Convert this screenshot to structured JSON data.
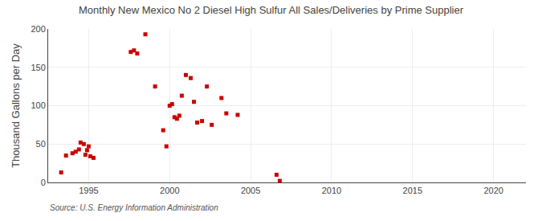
{
  "chart_data": {
    "type": "scatter",
    "title": "Monthly New Mexico No 2 Diesel High Sulfur All Sales/Deliveries by Prime Supplier",
    "ylabel": "Thousand Gallons per Day",
    "annotations": [
      "Source: U.S. Energy Information Administration"
    ],
    "x": [
      1993.3,
      1993.6,
      1994.0,
      1994.2,
      1994.4,
      1994.5,
      1994.7,
      1994.8,
      1994.9,
      1995.0,
      1995.1,
      1995.3,
      1997.6,
      1997.8,
      1998.0,
      1998.5,
      1999.1,
      1999.6,
      1999.8,
      2000.0,
      2000.15,
      2000.3,
      2000.45,
      2000.6,
      2000.75,
      2001.0,
      2001.3,
      2001.5,
      2001.7,
      2002.0,
      2002.3,
      2002.6,
      2003.2,
      2003.5,
      2004.2,
      2006.6,
      2006.8
    ],
    "values": [
      13,
      35,
      38,
      40,
      43,
      52,
      50,
      36,
      42,
      47,
      34,
      32,
      170,
      172,
      168,
      193,
      125,
      68,
      47,
      100,
      102,
      85,
      83,
      87,
      113,
      140,
      136,
      105,
      78,
      80,
      125,
      75,
      110,
      90,
      88,
      10,
      2
    ],
    "color": "#cc0000",
    "marker": "square",
    "xlim": [
      1992.5,
      2022
    ],
    "ylim": [
      0,
      200
    ],
    "xticks": [
      1995,
      2000,
      2005,
      2010,
      2015,
      2020
    ],
    "yticks": [
      0,
      50,
      100,
      150,
      200
    ],
    "grid": true
  }
}
